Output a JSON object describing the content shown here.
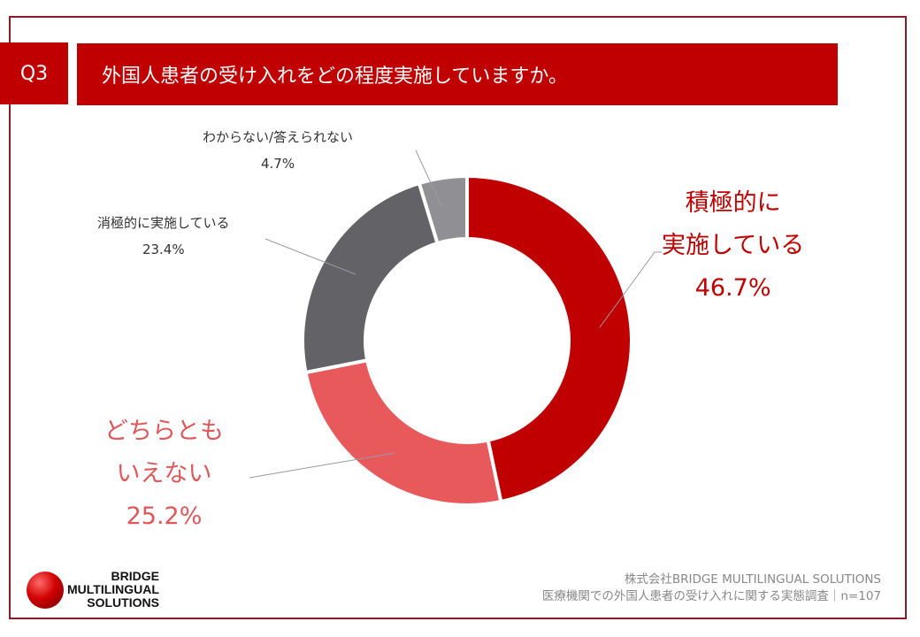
{
  "header": {
    "q_label": "Q3",
    "question": "外国人患者の受け入れをどの程度実施していますか。"
  },
  "chart_data": {
    "type": "pie",
    "donut": true,
    "start": "top, clockwise",
    "categories": [
      "積極的に実施している",
      "どちらともいえない",
      "消極的に実施している",
      "わからない/答えられない"
    ],
    "values": [
      46.7,
      25.2,
      23.4,
      4.7
    ],
    "colors": [
      "#c00000",
      "#e8595b",
      "#636266",
      "#8f8f94"
    ],
    "labels": [
      {
        "lines": [
          "積極的に",
          "実施している"
        ],
        "value": "46.7%"
      },
      {
        "lines": [
          "どちらとも",
          "いえない"
        ],
        "value": "25.2%"
      },
      {
        "lines": [
          "消極的に実施している"
        ],
        "value": "23.4%"
      },
      {
        "lines": [
          "わからない/答えられない"
        ],
        "value": "4.7%"
      }
    ]
  },
  "footer": {
    "logo_lines": [
      "BRIDGE",
      "MULTILINGUAL",
      "SOLUTIONS"
    ],
    "company": "株式会社BRIDGE MULTILINGUAL SOLUTIONS",
    "survey": "医療機関での外国人患者の受け入れに関する実態調査｜n=107"
  }
}
